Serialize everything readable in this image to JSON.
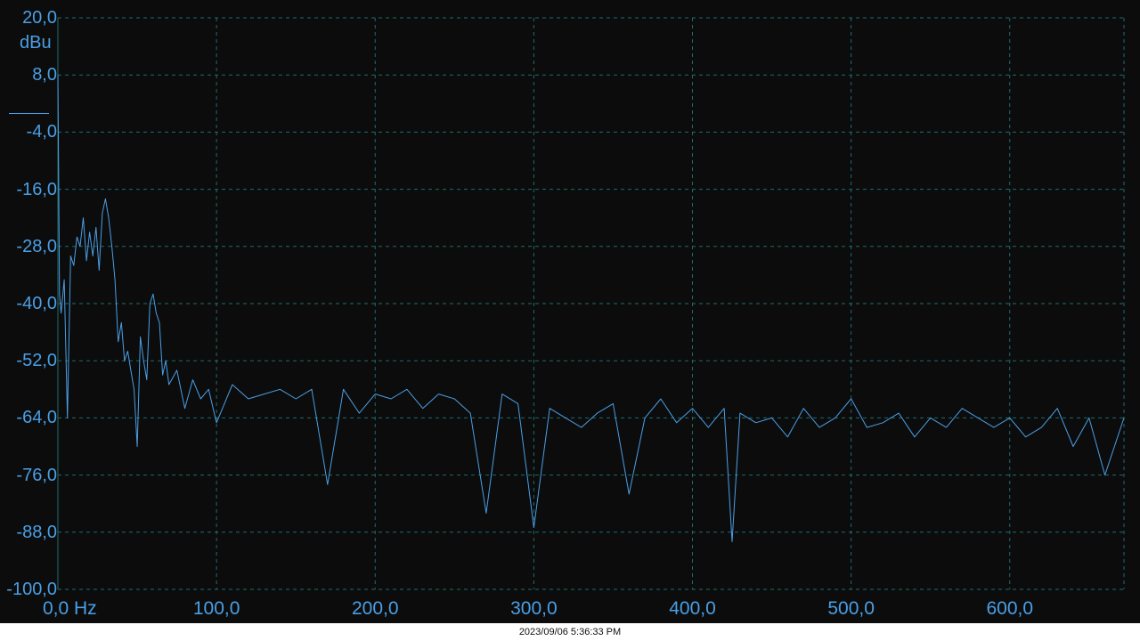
{
  "chart_data": {
    "type": "line",
    "xlabel_unit": "Hz",
    "ylabel_unit": "dBu",
    "xlim": [
      0,
      672
    ],
    "ylim": [
      -100,
      20
    ],
    "x_ticks": [
      {
        "value": 0,
        "label": "0,0"
      },
      {
        "value": 100,
        "label": "100,0"
      },
      {
        "value": 200,
        "label": "200,0"
      },
      {
        "value": 300,
        "label": "300,0"
      },
      {
        "value": 400,
        "label": "400,0"
      },
      {
        "value": 500,
        "label": "500,0"
      },
      {
        "value": 600,
        "label": "600,0"
      }
    ],
    "y_ticks": [
      {
        "value": 20,
        "label": "20,0"
      },
      {
        "value": 8,
        "label": "8,0"
      },
      {
        "value": -4,
        "label": "-4,0"
      },
      {
        "value": -16,
        "label": "-16,0"
      },
      {
        "value": -28,
        "label": "-28,0"
      },
      {
        "value": -40,
        "label": "-40,0"
      },
      {
        "value": -52,
        "label": "-52,0"
      },
      {
        "value": -64,
        "label": "-64,0"
      },
      {
        "value": -76,
        "label": "-76,0"
      },
      {
        "value": -88,
        "label": "-88,0"
      },
      {
        "value": -100,
        "label": "-100,0"
      }
    ],
    "grid": true,
    "line_color": "#4a9fe6",
    "grid_color": "#1f6b6b",
    "series": [
      {
        "x": [
          0,
          1,
          2,
          4,
          6,
          8,
          10,
          12,
          14,
          16,
          18,
          20,
          22,
          24,
          26,
          28,
          30,
          32,
          34,
          36,
          38,
          40,
          42,
          44,
          46,
          48,
          50,
          52,
          54,
          56,
          58,
          60,
          62,
          64,
          66,
          68,
          70,
          75,
          80,
          85,
          90,
          95,
          100,
          110,
          120,
          130,
          140,
          150,
          160,
          170,
          180,
          190,
          200,
          210,
          220,
          230,
          240,
          250,
          260,
          270,
          280,
          290,
          300,
          310,
          320,
          330,
          340,
          350,
          360,
          370,
          380,
          390,
          400,
          410,
          420,
          425,
          430,
          440,
          450,
          460,
          470,
          480,
          490,
          500,
          510,
          520,
          530,
          540,
          550,
          560,
          570,
          580,
          590,
          600,
          610,
          620,
          630,
          640,
          650,
          660,
          672
        ],
        "values": [
          8,
          -38,
          -42,
          -35,
          -64,
          -30,
          -32,
          -26,
          -28,
          -22,
          -31,
          -25,
          -30,
          -24,
          -33,
          -21,
          -18,
          -22,
          -28,
          -35,
          -48,
          -44,
          -52,
          -50,
          -54,
          -58,
          -70,
          -47,
          -52,
          -56,
          -40,
          -38,
          -42,
          -44,
          -55,
          -52,
          -57,
          -54,
          -62,
          -56,
          -60,
          -58,
          -65,
          -57,
          -60,
          -59,
          -58,
          -60,
          -58,
          -78,
          -58,
          -63,
          -59,
          -60,
          -58,
          -62,
          -59,
          -60,
          -63,
          -84,
          -59,
          -61,
          -87,
          -62,
          -64,
          -66,
          -63,
          -61,
          -80,
          -64,
          -60,
          -65,
          -62,
          -66,
          -62,
          -90,
          -63,
          -65,
          -64,
          -68,
          -62,
          -66,
          -64,
          -60,
          -66,
          -65,
          -63,
          -68,
          -64,
          -66,
          -62,
          -64,
          -66,
          -64,
          -68,
          -66,
          -62,
          -70,
          -64,
          -76,
          -64
        ]
      }
    ]
  },
  "footer": {
    "timestamp": "2023/09/06 5:36:33 PM"
  }
}
